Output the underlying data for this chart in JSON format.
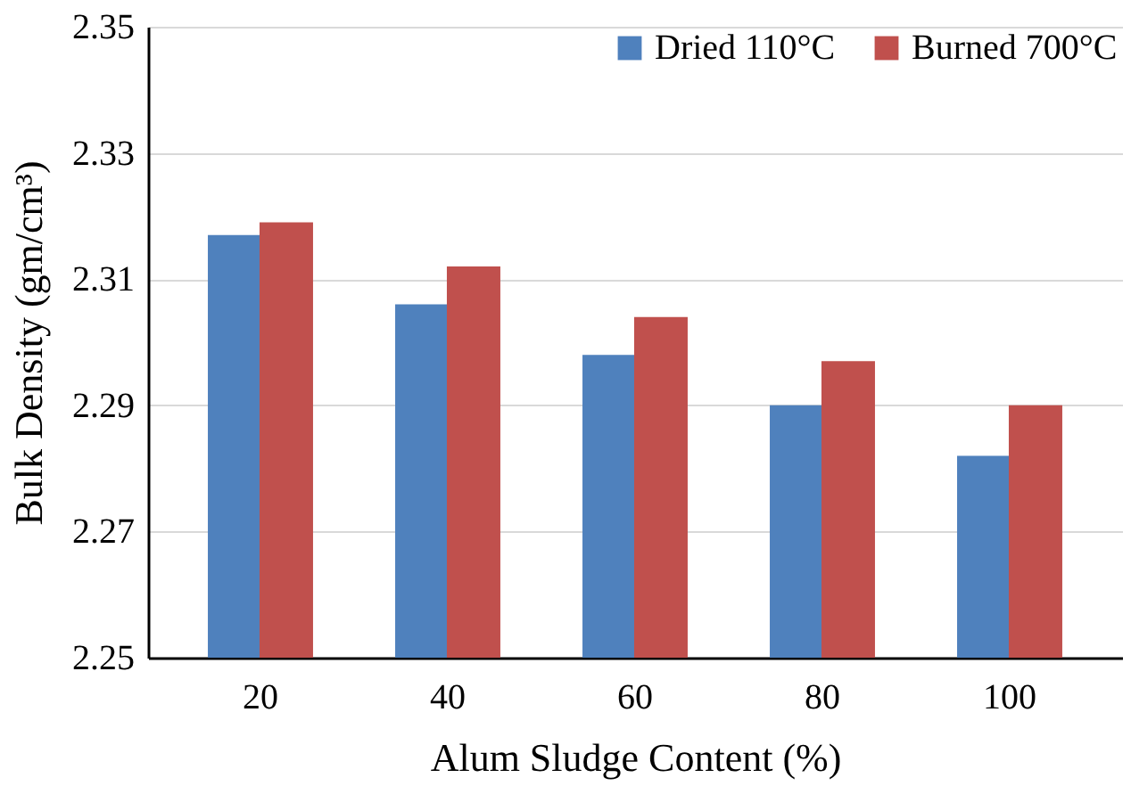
{
  "chart_data": {
    "type": "bar",
    "xlabel": "Alum Sludge Content (%)",
    "ylabel": "Bulk Density (gm/cm³)",
    "categories": [
      "20",
      "40",
      "60",
      "80",
      "100"
    ],
    "series": [
      {
        "name": "Dried 110°C",
        "color": "#4f81bd",
        "values": [
          2.317,
          2.306,
          2.298,
          2.29,
          2.282
        ]
      },
      {
        "name": "Burned 700°C",
        "color": "#c0504d",
        "values": [
          2.319,
          2.312,
          2.304,
          2.297,
          2.29
        ]
      }
    ],
    "ylim": [
      2.25,
      2.35
    ],
    "yticks": [
      2.25,
      2.27,
      2.29,
      2.31,
      2.33,
      2.35
    ],
    "grid": "y",
    "legend": "top right"
  }
}
